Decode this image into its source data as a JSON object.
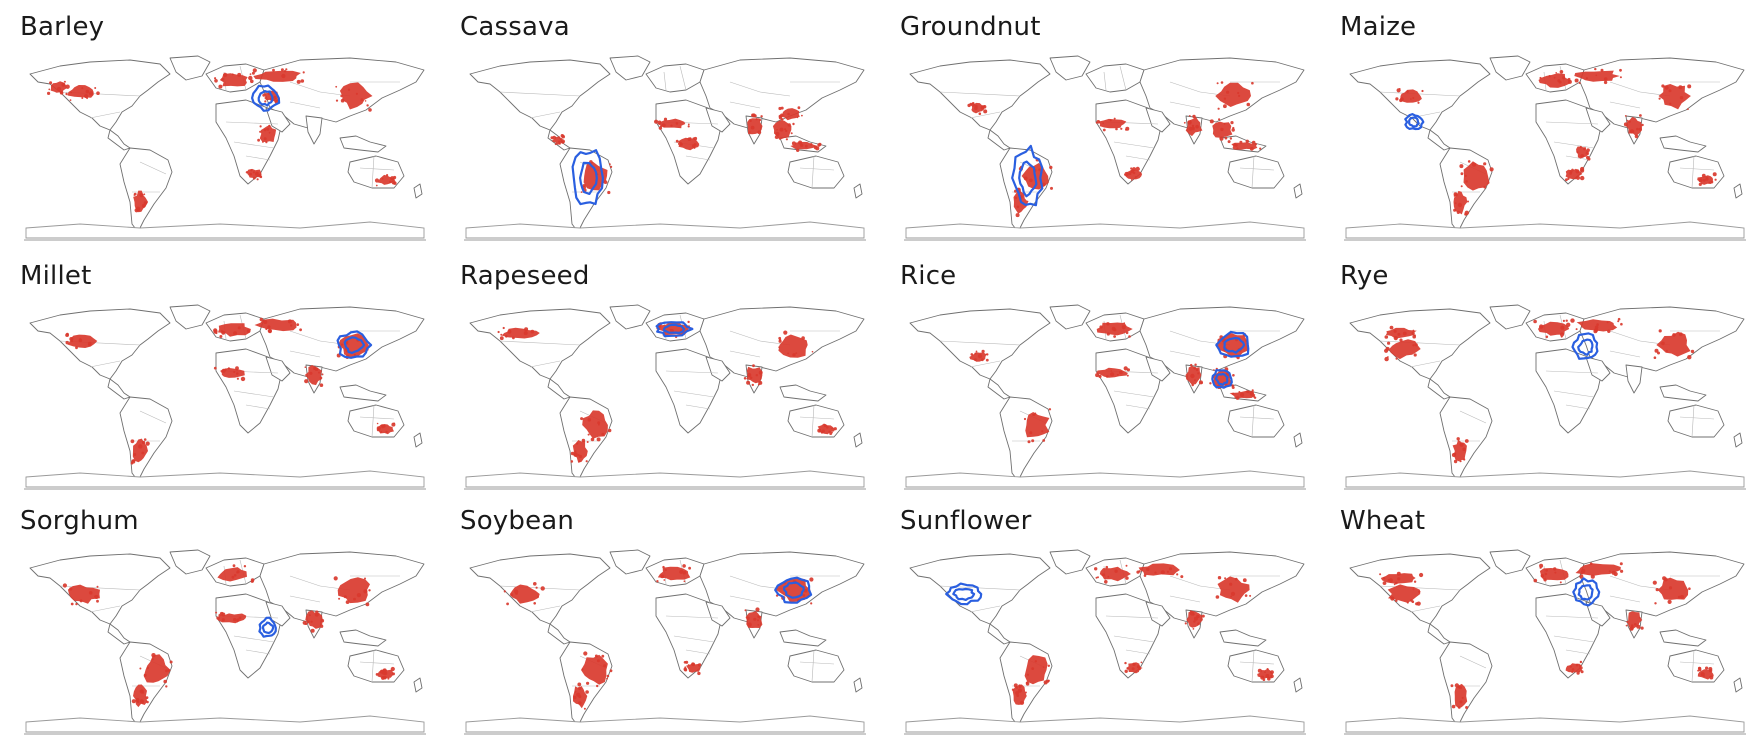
{
  "panels": [
    {
      "title": "Barley",
      "origin": [
        "near-east"
      ],
      "areas": [
        "na-central",
        "na-west",
        "europe",
        "russia",
        "middle-east",
        "china",
        "argentina",
        "s-africa",
        "australia-se",
        "ethiopia"
      ]
    },
    {
      "title": "Cassava",
      "origin": [
        "south-america"
      ],
      "areas": [
        "brazil",
        "west-africa",
        "central-africa",
        "india",
        "china-s",
        "se-asia",
        "indonesia",
        "central-america"
      ]
    },
    {
      "title": "Groundnut",
      "origin": [
        "south-america"
      ],
      "areas": [
        "west-africa",
        "india",
        "china",
        "se-asia",
        "brazil",
        "argentina",
        "usa-se",
        "s-africa",
        "indonesia"
      ]
    },
    {
      "title": "Maize",
      "origin": [
        "mexico"
      ],
      "areas": [
        "us-cornbelt",
        "europe",
        "russia",
        "china",
        "india",
        "brazil",
        "argentina",
        "s-africa",
        "e-africa",
        "australia-se"
      ]
    },
    {
      "title": "Millet",
      "origin": [
        "china"
      ],
      "areas": [
        "west-africa",
        "india",
        "china",
        "russia",
        "europe",
        "argentina",
        "australia-se",
        "na-central"
      ]
    },
    {
      "title": "Rapeseed",
      "origin": [
        "europe"
      ],
      "areas": [
        "europe",
        "canada",
        "china",
        "india",
        "australia-se",
        "brazil",
        "argentina"
      ]
    },
    {
      "title": "Rice",
      "origin": [
        "china",
        "se-asia"
      ],
      "areas": [
        "india",
        "china",
        "se-asia",
        "indonesia",
        "brazil",
        "west-africa",
        "usa-se",
        "europe"
      ]
    },
    {
      "title": "Rye",
      "origin": [
        "near-east"
      ],
      "areas": [
        "europe",
        "russia",
        "canada",
        "usa",
        "china",
        "argentina"
      ]
    },
    {
      "title": "Sorghum",
      "origin": [
        "ethiopia"
      ],
      "areas": [
        "usa",
        "west-africa",
        "india",
        "china",
        "argentina",
        "brazil",
        "australia-se",
        "europe"
      ]
    },
    {
      "title": "Soybean",
      "origin": [
        "china"
      ],
      "areas": [
        "usa",
        "brazil",
        "argentina",
        "china",
        "india",
        "europe",
        "s-africa"
      ]
    },
    {
      "title": "Sunflower",
      "origin": [
        "usa"
      ],
      "areas": [
        "russia",
        "europe",
        "argentina",
        "brazil",
        "china",
        "india",
        "s-africa",
        "australia-se"
      ]
    },
    {
      "title": "Wheat",
      "origin": [
        "near-east"
      ],
      "areas": [
        "usa",
        "canada",
        "europe",
        "russia",
        "india",
        "china",
        "argentina",
        "australia-se",
        "s-africa"
      ]
    }
  ],
  "legend_colors": {
    "production": "#d9392e",
    "origin": "#2a5fe0",
    "borders": "#b9b9b9"
  }
}
